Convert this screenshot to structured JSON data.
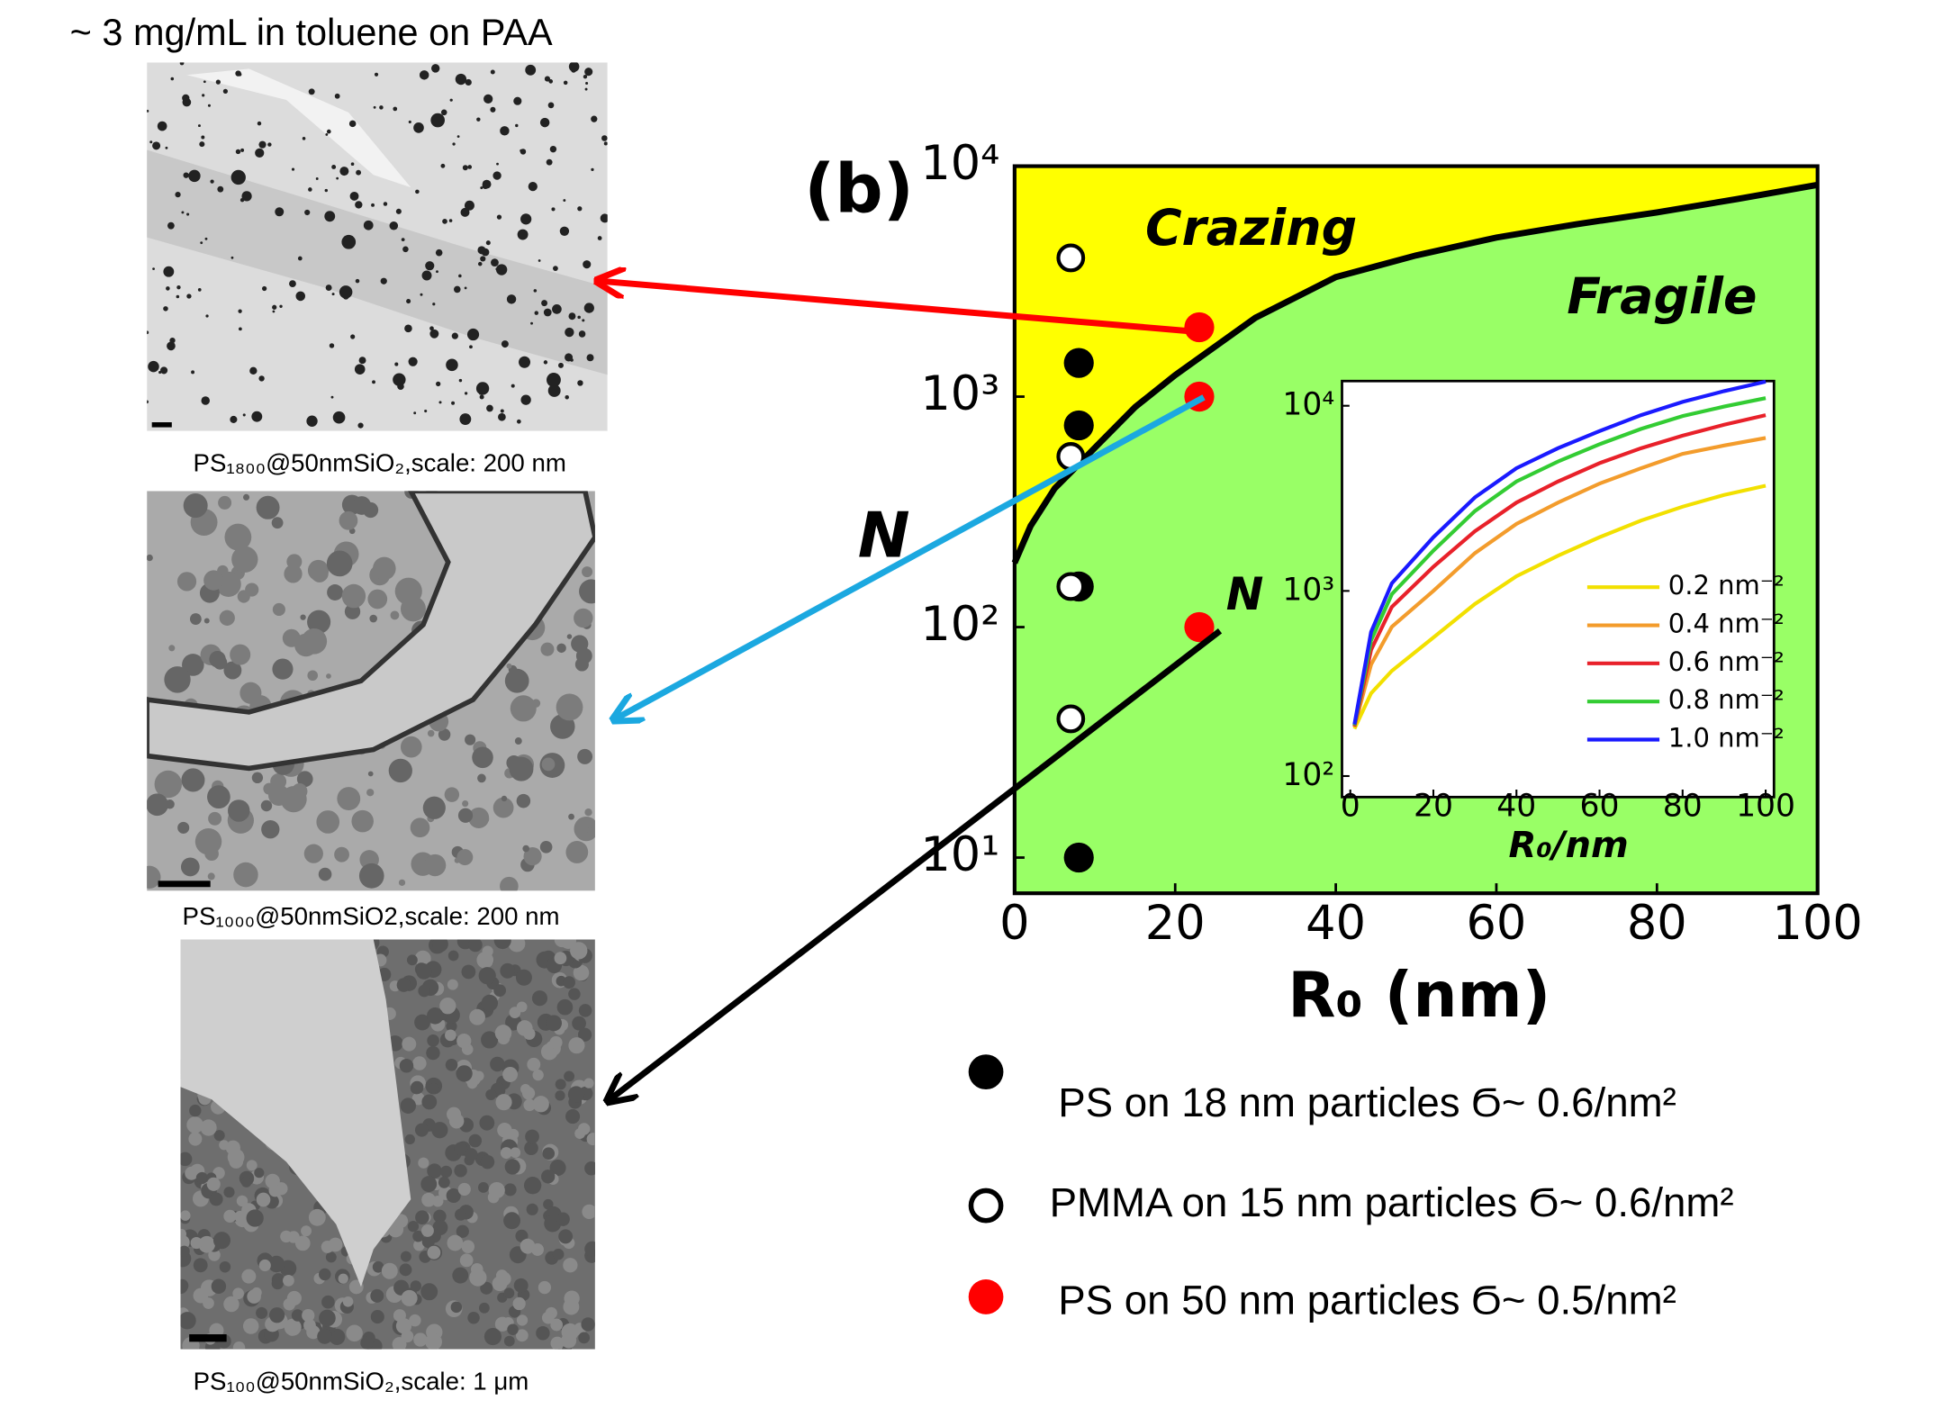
{
  "header": "~ 3 mg/mL in toluene on PAA",
  "captions": [
    "PS₁₈₀₀@50nmSiO₂,scale: 200 nm",
    "PS₁₀₀₀@50nmSiO2,scale:  200 nm",
    "PS₁₀₀@50nmSiO₂,scale: 1 μm"
  ],
  "chart_data": [
    {
      "type": "scatter",
      "label": "(b)",
      "annotations": [
        "Crazing",
        "Fragile",
        "N"
      ],
      "xlabel": "R₀ (nm)",
      "ylabel": "N",
      "yscale": "log",
      "xlim": [
        0,
        100
      ],
      "xticks": [
        0,
        20,
        40,
        60,
        80,
        100
      ],
      "ylim": [
        7,
        10000
      ],
      "yticks": [
        {
          "value": 10,
          "label": "10¹"
        },
        {
          "value": 100,
          "label": "10²"
        },
        {
          "value": 1000,
          "label": "10³"
        },
        {
          "value": 10000,
          "label": "10⁴"
        }
      ],
      "region_colors": [
        "#ffff00",
        "#99ff66"
      ],
      "boundary": {
        "color": "#000000",
        "x": [
          0,
          2,
          5,
          7,
          10,
          15,
          20,
          30,
          40,
          50,
          60,
          70,
          80,
          90,
          100
        ],
        "values": [
          190,
          275,
          400,
          470,
          600,
          900,
          1240,
          2200,
          3300,
          4100,
          4900,
          5600,
          6300,
          7200,
          8300
        ]
      },
      "series": [
        {
          "name": "PS on 18 nm particles Ϭ~ 0.6/nm²",
          "color": "#000000",
          "marker": "filled",
          "x": [
            8,
            8,
            8,
            8
          ],
          "values": [
            1400,
            750,
            150,
            10
          ]
        },
        {
          "name": "PMMA on 15 nm particles Ϭ~ 0.6/nm²",
          "color": "#000000",
          "marker": "open",
          "x": [
            7,
            7,
            7,
            7
          ],
          "values": [
            4000,
            550,
            150,
            40
          ]
        },
        {
          "name": "PS on 50 nm particles Ϭ~ 0.5/nm²",
          "color": "#ff0000",
          "marker": "filled",
          "x": [
            23,
            23,
            23
          ],
          "values": [
            2000,
            1000,
            100
          ]
        }
      ]
    },
    {
      "type": "line",
      "xlabel": "R₀/nm",
      "yscale": "log",
      "xlim": [
        -2,
        102
      ],
      "xticks": [
        0,
        20,
        40,
        60,
        80,
        100
      ],
      "ylim": [
        77,
        13600
      ],
      "yticks": [
        {
          "value": 100,
          "label": "10²"
        },
        {
          "value": 1000,
          "label": "10³"
        },
        {
          "value": 10000,
          "label": "10⁴"
        }
      ],
      "x": [
        1,
        5,
        10,
        20,
        30,
        40,
        50,
        60,
        70,
        80,
        90,
        100
      ],
      "series": [
        {
          "name": "0.2 nm⁻²",
          "color": "#f2e000",
          "values": [
            180,
            280,
            370,
            560,
            850,
            1200,
            1550,
            1950,
            2400,
            2850,
            3300,
            3700
          ]
        },
        {
          "name": "0.4 nm⁻²",
          "color": "#f39c2c",
          "values": [
            185,
            400,
            640,
            1000,
            1600,
            2300,
            3000,
            3800,
            4600,
            5500,
            6100,
            6700
          ]
        },
        {
          "name": "0.6 nm⁻²",
          "color": "#e8212a",
          "values": [
            185,
            480,
            820,
            1350,
            2100,
            3000,
            3900,
            4900,
            5900,
            6900,
            7900,
            8900
          ]
        },
        {
          "name": "0.8 nm⁻²",
          "color": "#33cc33",
          "values": [
            188,
            540,
            960,
            1650,
            2700,
            3900,
            5000,
            6200,
            7500,
            8800,
            9900,
            11000
          ]
        },
        {
          "name": "1.0 nm⁻²",
          "color": "#1a1aff",
          "values": [
            190,
            600,
            1100,
            1950,
            3200,
            4600,
            5900,
            7300,
            8900,
            10500,
            12000,
            13500
          ]
        }
      ]
    }
  ]
}
